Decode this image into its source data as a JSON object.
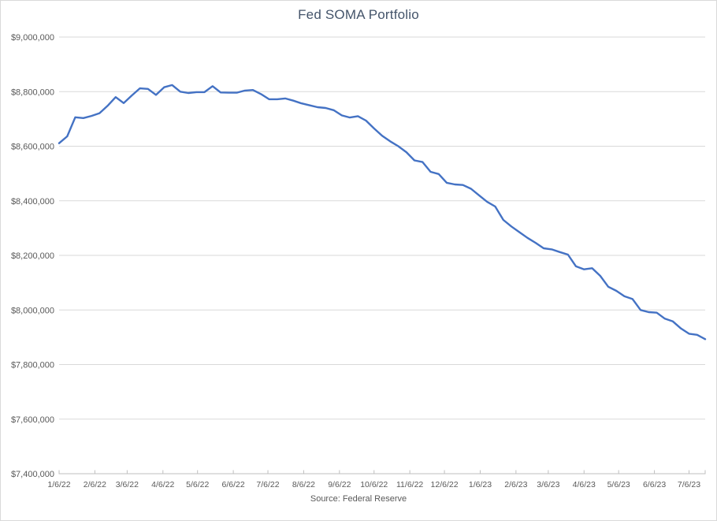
{
  "chart": {
    "title": "Fed SOMA Portfolio",
    "source_label": "Source: Federal Reserve",
    "colors": {
      "series_line": "#4472C4",
      "gridline": "#D9D9D9",
      "axis_line": "#BFBFBF",
      "tick_text": "#595959",
      "title_text": "#44546A",
      "background": "#FFFFFF",
      "chart_border": "#D9D9D9"
    }
  },
  "chart_data": {
    "type": "line",
    "title": "Fed SOMA Portfolio",
    "source": "Source: Federal Reserve",
    "ylabel": "",
    "xlabel": "",
    "legend": "none",
    "grid": true,
    "ylim": [
      7400000,
      9000000
    ],
    "y_tick_step": 200000,
    "y_tick_labels": [
      "$9,000,000",
      "$8,800,000",
      "$8,600,000",
      "$8,400,000",
      "$8,200,000",
      "$8,000,000",
      "$7,800,000",
      "$7,600,000",
      "$7,400,000"
    ],
    "y_tick_values": [
      9000000,
      8800000,
      8600000,
      8400000,
      8200000,
      8000000,
      7800000,
      7600000,
      7400000
    ],
    "x_tick_labels": [
      "1/6/22",
      "2/6/22",
      "3/6/22",
      "4/6/22",
      "5/6/22",
      "6/6/22",
      "7/6/22",
      "8/6/22",
      "9/6/22",
      "10/6/22",
      "11/6/22",
      "12/6/22",
      "1/6/23",
      "2/6/23",
      "3/6/23",
      "4/6/23",
      "5/6/23",
      "6/6/23",
      "7/6/23"
    ],
    "x": [
      "1/6/22",
      "1/13/22",
      "1/20/22",
      "1/27/22",
      "2/3/22",
      "2/10/22",
      "2/17/22",
      "2/24/22",
      "3/3/22",
      "3/10/22",
      "3/17/22",
      "3/24/22",
      "3/31/22",
      "4/7/22",
      "4/14/22",
      "4/21/22",
      "4/28/22",
      "5/5/22",
      "5/12/22",
      "5/19/22",
      "5/26/22",
      "6/2/22",
      "6/9/22",
      "6/16/22",
      "6/23/22",
      "6/30/22",
      "7/7/22",
      "7/14/22",
      "7/21/22",
      "7/28/22",
      "8/4/22",
      "8/11/22",
      "8/18/22",
      "8/25/22",
      "9/1/22",
      "9/8/22",
      "9/15/22",
      "9/22/22",
      "9/29/22",
      "10/6/22",
      "10/13/22",
      "10/20/22",
      "10/27/22",
      "11/3/22",
      "11/10/22",
      "11/17/22",
      "11/24/22",
      "12/1/22",
      "12/8/22",
      "12/15/22",
      "12/22/22",
      "12/29/22",
      "1/5/23",
      "1/12/23",
      "1/19/23",
      "1/26/23",
      "2/2/23",
      "2/9/23",
      "2/16/23",
      "2/23/23",
      "3/2/23",
      "3/9/23",
      "3/16/23",
      "3/23/23",
      "3/30/23",
      "4/6/23",
      "4/13/23",
      "4/20/23",
      "4/27/23",
      "5/4/23",
      "5/11/23",
      "5/18/23",
      "5/25/23",
      "6/1/23",
      "6/8/23",
      "6/15/23",
      "6/22/23",
      "6/29/23",
      "7/6/23",
      "7/13/23",
      "7/20/23"
    ],
    "values": [
      8611000,
      8636000,
      8706000,
      8703000,
      8711000,
      8721000,
      8748000,
      8780000,
      8758000,
      8786000,
      8812000,
      8810000,
      8788000,
      8816000,
      8824000,
      8800000,
      8795000,
      8798000,
      8798000,
      8820000,
      8797000,
      8796000,
      8796000,
      8804000,
      8806000,
      8791000,
      8772000,
      8772000,
      8775000,
      8767000,
      8757000,
      8750000,
      8743000,
      8740000,
      8732000,
      8713000,
      8705000,
      8710000,
      8694000,
      8665000,
      8638000,
      8618000,
      8600000,
      8578000,
      8548000,
      8542000,
      8506000,
      8498000,
      8466000,
      8460000,
      8458000,
      8444000,
      8420000,
      8396000,
      8379000,
      8330000,
      8306000,
      8285000,
      8264000,
      8246000,
      8226000,
      8222000,
      8212000,
      8203000,
      8160000,
      8149000,
      8153000,
      8125000,
      8085000,
      8070000,
      8050000,
      8040000,
      8000000,
      7992000,
      7990000,
      7968000,
      7958000,
      7932000,
      7913000,
      7909000,
      7893000
    ]
  }
}
